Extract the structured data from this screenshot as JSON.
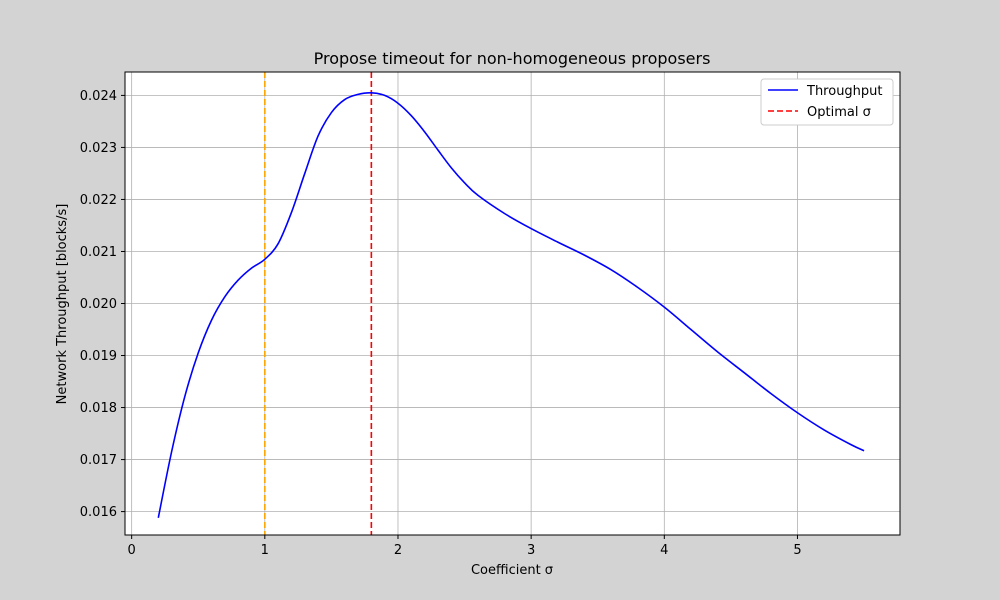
{
  "chart_data": {
    "type": "line",
    "title": "Propose timeout for non-homogeneous proposers",
    "xlabel": "Coefficient σ",
    "ylabel": "Network Throughput [blocks/s]",
    "xlim": [
      -0.05,
      5.77
    ],
    "ylim": [
      0.01555,
      0.02445
    ],
    "xticks": [
      0,
      1,
      2,
      3,
      4,
      5
    ],
    "xtick_labels": [
      "0",
      "1",
      "2",
      "3",
      "4",
      "5"
    ],
    "yticks": [
      0.016,
      0.017,
      0.018,
      0.019,
      0.02,
      0.021,
      0.022,
      0.023,
      0.024
    ],
    "ytick_labels": [
      "0.016",
      "0.017",
      "0.018",
      "0.019",
      "0.020",
      "0.021",
      "0.022",
      "0.023",
      "0.024"
    ],
    "grid": true,
    "legend_position": "top-right",
    "series": [
      {
        "name": "Throughput",
        "color": "#0000ff",
        "style": "solid",
        "x": [
          0.2,
          0.3,
          0.4,
          0.5,
          0.6,
          0.7,
          0.8,
          0.9,
          1.0,
          1.1,
          1.2,
          1.3,
          1.4,
          1.5,
          1.6,
          1.7,
          1.8,
          1.9,
          2.0,
          2.1,
          2.2,
          2.3,
          2.4,
          2.5,
          2.6,
          2.8,
          3.0,
          3.2,
          3.4,
          3.6,
          3.8,
          4.0,
          4.2,
          4.4,
          4.6,
          4.8,
          5.0,
          5.2,
          5.4,
          5.5
        ],
        "y": [
          0.01588,
          0.01715,
          0.01822,
          0.01905,
          0.01968,
          0.02013,
          0.02045,
          0.02068,
          0.02085,
          0.02115,
          0.02175,
          0.0225,
          0.02322,
          0.02367,
          0.02392,
          0.02402,
          0.02405,
          0.024,
          0.02385,
          0.02361,
          0.0233,
          0.02295,
          0.02261,
          0.02232,
          0.02208,
          0.02173,
          0.02144,
          0.02118,
          0.02093,
          0.02065,
          0.02031,
          0.01993,
          0.0195,
          0.01907,
          0.01867,
          0.01827,
          0.0179,
          0.01757,
          0.01729,
          0.01717
        ]
      },
      {
        "name": "Optimal σ",
        "color": "#ff0000",
        "style": "dashed",
        "x_value": 1.8
      },
      {
        "color": "#ffa500",
        "style": "dashed",
        "x_value": 1.0
      }
    ]
  }
}
